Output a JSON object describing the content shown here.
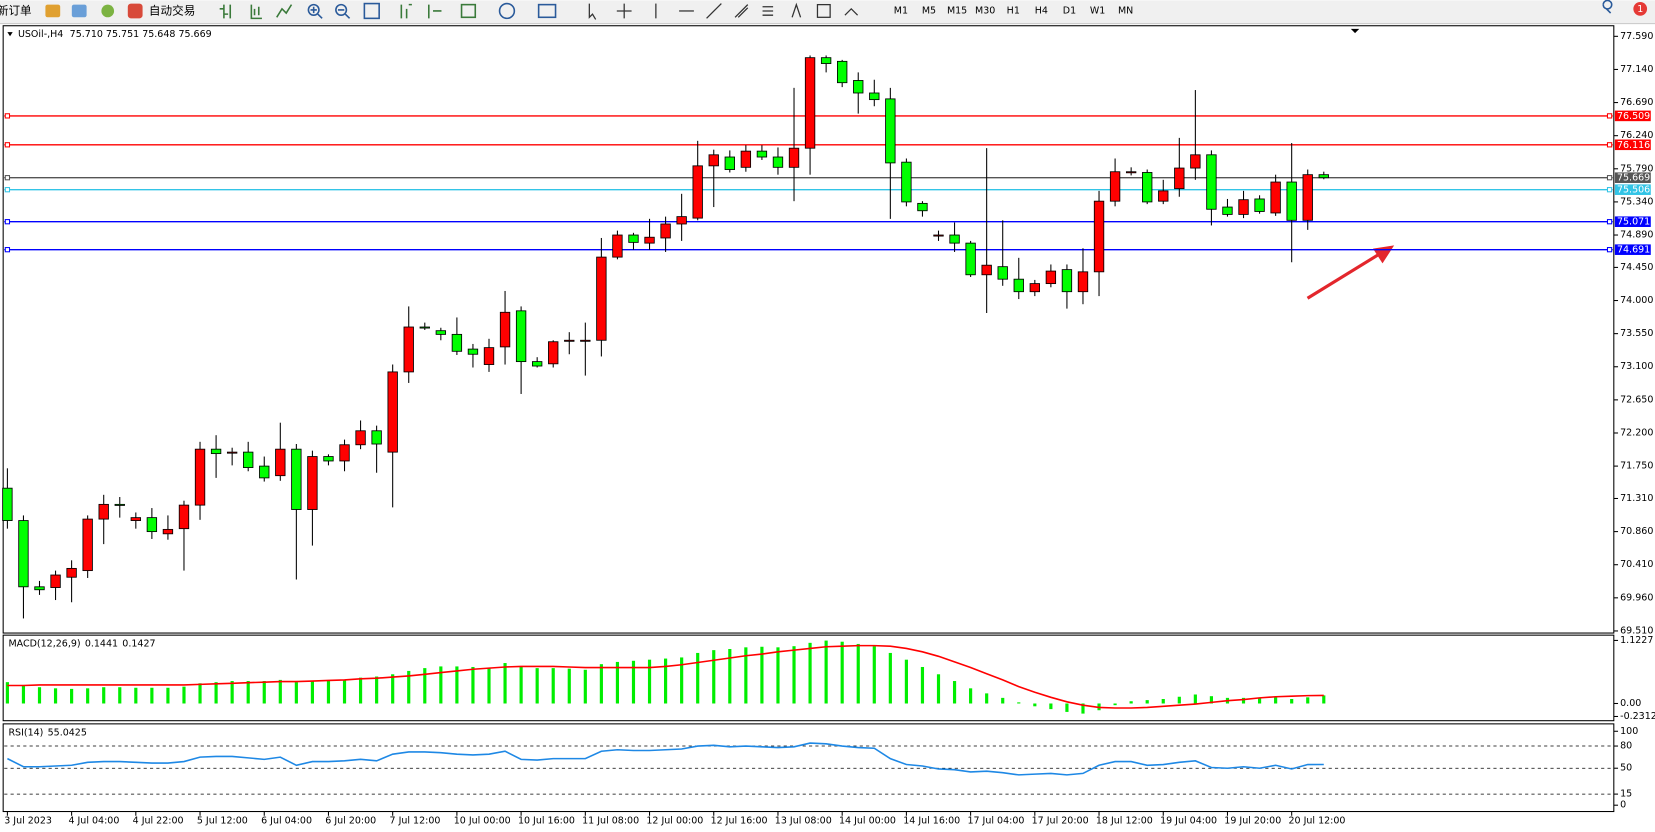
{
  "toolbar": {
    "new_order": "新订单",
    "auto_trading": "自动交易",
    "timeframes": [
      "M1",
      "M5",
      "M15",
      "M30",
      "H1",
      "H4",
      "D1",
      "W1",
      "MN"
    ],
    "alerts": 1
  },
  "chart_data": [
    {
      "type": "candlestick",
      "title": "USOil-,H4",
      "subtitle": "75.710 75.751 75.648 75.669",
      "categories": [
        "3 Jul 2023",
        null,
        null,
        null,
        "4 Jul 04:00",
        null,
        null,
        null,
        "4 Jul 22:00",
        null,
        null,
        null,
        "5 Jul 12:00",
        null,
        null,
        null,
        "6 Jul 04:00",
        null,
        null,
        null,
        "6 Jul 20:00",
        null,
        null,
        null,
        "7 Jul 12:00",
        null,
        null,
        null,
        "10 Jul 00:00",
        null,
        null,
        null,
        "10 Jul 16:00",
        null,
        null,
        null,
        "11 Jul 08:00",
        null,
        null,
        null,
        "12 Jul 00:00",
        null,
        null,
        null,
        "12 Jul 16:00",
        null,
        null,
        null,
        "13 Jul 08:00",
        null,
        null,
        null,
        "14 Jul 00:00",
        null,
        null,
        null,
        "14 Jul 16:00",
        null,
        null,
        null,
        "17 Jul 04:00",
        null,
        null,
        null,
        "17 Jul 20:00",
        null,
        null,
        null,
        "18 Jul 12:00",
        null,
        null,
        null,
        "19 Jul 04:00",
        null,
        null,
        null,
        "19 Jul 20:00",
        null,
        null,
        null,
        "20 Jul 12:00",
        null,
        null
      ],
      "open": [
        71.45,
        71.01,
        70.11,
        70.1,
        70.24,
        70.33,
        71.03,
        71.23,
        71.01,
        71.05,
        70.83,
        70.9,
        71.22,
        71.98,
        71.94,
        71.94,
        71.75,
        71.62,
        71.98,
        71.16,
        71.88,
        71.82,
        72.04,
        72.23,
        71.94,
        73.03,
        73.64,
        73.59,
        73.54,
        73.34,
        73.13,
        73.37,
        73.86,
        73.17,
        73.14,
        73.46,
        73.46,
        73.46,
        74.59,
        74.89,
        74.78,
        74.85,
        75.04,
        75.12,
        75.83,
        75.95,
        75.81,
        76.03,
        75.95,
        75.81,
        76.07,
        77.3,
        77.25,
        76.99,
        76.82,
        76.74,
        75.88,
        75.32,
        74.89,
        74.89,
        74.78,
        74.35,
        74.46,
        74.29,
        74.12,
        74.23,
        74.42,
        74.12,
        74.39,
        75.35,
        75.75,
        75.74,
        75.35,
        75.52,
        75.8,
        75.98,
        75.27,
        75.17,
        75.38,
        75.19,
        75.61,
        75.09,
        75.71
      ],
      "high": [
        71.72,
        71.08,
        70.19,
        70.33,
        70.47,
        71.08,
        71.36,
        71.33,
        71.12,
        71.18,
        71.08,
        71.28,
        72.08,
        72.17,
        72.0,
        72.08,
        71.88,
        72.34,
        72.05,
        71.96,
        71.91,
        72.11,
        72.37,
        72.3,
        73.13,
        73.92,
        73.7,
        73.63,
        73.77,
        73.41,
        73.48,
        74.13,
        73.92,
        73.23,
        73.46,
        73.57,
        73.7,
        74.85,
        74.95,
        74.92,
        75.11,
        75.14,
        75.45,
        76.17,
        76.05,
        76.04,
        76.11,
        76.11,
        76.08,
        76.89,
        77.33,
        77.33,
        77.27,
        77.1,
        77.0,
        76.89,
        75.93,
        75.35,
        74.95,
        75.06,
        74.81,
        76.07,
        75.09,
        74.58,
        74.28,
        74.49,
        74.49,
        74.71,
        75.49,
        75.93,
        75.81,
        75.78,
        75.64,
        76.21,
        76.86,
        76.04,
        75.38,
        75.49,
        75.43,
        75.71,
        76.14,
        75.78,
        75.751
      ],
      "low": [
        70.9,
        69.68,
        70.0,
        69.93,
        69.9,
        70.23,
        70.69,
        71.05,
        70.9,
        70.76,
        70.75,
        70.33,
        71.02,
        71.59,
        71.76,
        71.68,
        71.54,
        71.55,
        70.21,
        70.67,
        71.76,
        71.68,
        71.98,
        71.66,
        71.19,
        72.88,
        73.6,
        73.46,
        73.26,
        73.09,
        73.03,
        73.13,
        72.73,
        73.09,
        73.09,
        73.27,
        72.98,
        73.24,
        74.56,
        74.69,
        74.69,
        74.66,
        74.81,
        75.09,
        75.27,
        75.74,
        75.75,
        75.91,
        75.71,
        75.35,
        75.71,
        77.1,
        76.9,
        76.54,
        76.64,
        75.11,
        75.28,
        75.14,
        74.81,
        74.66,
        74.32,
        73.83,
        74.2,
        74.02,
        74.06,
        74.18,
        73.89,
        73.95,
        74.06,
        75.28,
        75.7,
        75.31,
        75.31,
        75.41,
        75.64,
        75.02,
        75.14,
        75.12,
        75.18,
        75.15,
        74.52,
        74.96,
        75.648
      ],
      "close": [
        71.01,
        70.11,
        70.07,
        70.27,
        70.36,
        71.03,
        71.23,
        71.22,
        71.05,
        70.86,
        70.89,
        71.22,
        71.98,
        71.92,
        71.94,
        71.73,
        71.59,
        71.98,
        71.16,
        71.88,
        71.82,
        72.04,
        72.23,
        72.05,
        73.03,
        73.64,
        73.63,
        73.54,
        73.31,
        73.27,
        73.36,
        73.84,
        73.17,
        73.11,
        73.44,
        73.46,
        73.46,
        74.59,
        74.89,
        74.79,
        74.86,
        75.04,
        75.14,
        75.83,
        75.98,
        75.78,
        76.03,
        75.95,
        75.81,
        76.07,
        77.3,
        77.22,
        76.96,
        76.82,
        76.73,
        75.87,
        75.34,
        75.22,
        74.89,
        74.78,
        74.35,
        74.48,
        74.29,
        74.12,
        74.23,
        74.4,
        74.12,
        74.39,
        75.35,
        75.75,
        75.75,
        75.34,
        75.49,
        75.8,
        75.98,
        75.24,
        75.17,
        75.37,
        75.21,
        75.61,
        75.09,
        75.71,
        75.669
      ],
      "up_color": "#ff0000",
      "down_color": "#00ff00",
      "wick_color": "#000000",
      "ylim": [
        69.496,
        77.705
      ],
      "yticks": [
        {
          "value": 77.59,
          "label": "77.590"
        },
        {
          "value": 77.14,
          "label": "77.140"
        },
        {
          "value": 76.69,
          "label": "76.690"
        },
        {
          "value": 76.24,
          "label": "76.240"
        },
        {
          "value": 75.79,
          "label": "75.790"
        },
        {
          "value": 75.34,
          "label": "75.340"
        },
        {
          "value": 74.89,
          "label": "74.890"
        },
        {
          "value": 74.45,
          "label": "74.450"
        },
        {
          "value": 74.0,
          "label": "74.000"
        },
        {
          "value": 73.55,
          "label": "73.550"
        },
        {
          "value": 73.1,
          "label": "73.100"
        },
        {
          "value": 72.65,
          "label": "72.650"
        },
        {
          "value": 72.2,
          "label": "72.200"
        },
        {
          "value": 71.75,
          "label": "71.750"
        },
        {
          "value": 71.31,
          "label": "71.310"
        },
        {
          "value": 70.86,
          "label": "70.860"
        },
        {
          "value": 70.41,
          "label": "70.410"
        },
        {
          "value": 69.96,
          "label": "69.960"
        },
        {
          "value": 69.51,
          "label": "69.510"
        }
      ],
      "levels": [
        {
          "value": 76.509,
          "color": "#ff0000"
        },
        {
          "value": 76.116,
          "color": "#ff0000"
        },
        {
          "value": 75.669,
          "color": "#555555"
        },
        {
          "value": 75.506,
          "color": "#33c4e6"
        },
        {
          "value": 75.071,
          "color": "#0000ff"
        },
        {
          "value": 74.691,
          "color": "#0000ff"
        }
      ]
    },
    {
      "type": "macd",
      "title": "MACD(12,26,9)",
      "series": [
        {
          "type": "bar",
          "color": "#00ee00",
          "values": [
            0.38,
            0.33,
            0.29,
            0.27,
            0.26,
            0.27,
            0.29,
            0.29,
            0.28,
            0.28,
            0.28,
            0.3,
            0.36,
            0.38,
            0.4,
            0.4,
            0.4,
            0.42,
            0.38,
            0.4,
            0.4,
            0.42,
            0.46,
            0.48,
            0.52,
            0.58,
            0.63,
            0.66,
            0.66,
            0.65,
            0.64,
            0.72,
            0.66,
            0.63,
            0.63,
            0.62,
            0.6,
            0.7,
            0.74,
            0.76,
            0.78,
            0.8,
            0.82,
            0.9,
            0.95,
            0.97,
            1.0,
            1.01,
            1.0,
            1.02,
            1.08,
            1.12,
            1.1,
            1.06,
            1.02,
            0.9,
            0.78,
            0.65,
            0.52,
            0.4,
            0.27,
            0.18,
            0.1,
            0.02,
            -0.05,
            -0.1,
            -0.15,
            -0.18,
            -0.12,
            -0.03,
            0.04,
            0.06,
            0.08,
            0.12,
            0.16,
            0.13,
            0.1,
            0.1,
            0.09,
            0.11,
            0.08,
            0.11,
            0.1441
          ]
        },
        {
          "type": "line",
          "color": "#ff0000",
          "values": [
            0.32,
            0.32,
            0.33,
            0.33,
            0.33,
            0.33,
            0.33,
            0.33,
            0.33,
            0.33,
            0.33,
            0.33,
            0.34,
            0.35,
            0.36,
            0.37,
            0.38,
            0.39,
            0.39,
            0.4,
            0.41,
            0.42,
            0.44,
            0.45,
            0.47,
            0.49,
            0.52,
            0.55,
            0.58,
            0.61,
            0.63,
            0.65,
            0.66,
            0.66,
            0.66,
            0.65,
            0.64,
            0.64,
            0.64,
            0.64,
            0.64,
            0.66,
            0.69,
            0.73,
            0.77,
            0.81,
            0.85,
            0.88,
            0.92,
            0.95,
            0.98,
            1.01,
            1.02,
            1.03,
            1.03,
            1.02,
            0.98,
            0.92,
            0.84,
            0.74,
            0.64,
            0.53,
            0.42,
            0.3,
            0.2,
            0.11,
            0.03,
            -0.03,
            -0.07,
            -0.08,
            -0.08,
            -0.07,
            -0.05,
            -0.03,
            -0.01,
            0.02,
            0.05,
            0.07,
            0.1,
            0.12,
            0.13,
            0.14,
            0.1427
          ]
        }
      ],
      "ylim": [
        -0.2312,
        1.1227
      ],
      "yticks": [
        1.1227,
        {
          "value": 0,
          "label": "0.00"
        },
        -0.2312
      ]
    },
    {
      "type": "line",
      "title": "RSI(14)",
      "color": "#1e88e5",
      "values": [
        63,
        52,
        52,
        53,
        54,
        58,
        59,
        59,
        58,
        57,
        57,
        59,
        65,
        66,
        66,
        64,
        62,
        65,
        54,
        59,
        59,
        60,
        62,
        60,
        69,
        72,
        72,
        71,
        69,
        68,
        69,
        73,
        62,
        61,
        63,
        63,
        63,
        73,
        75,
        74,
        74,
        75,
        76,
        80,
        81,
        79,
        80,
        79,
        78,
        79,
        84,
        83,
        80,
        78,
        77,
        63,
        55,
        53,
        49,
        48,
        45,
        46,
        44,
        41,
        42,
        43,
        41,
        43,
        54,
        59,
        59,
        54,
        55,
        58,
        60,
        51,
        50,
        52,
        50,
        54,
        49,
        55,
        55.0425
      ],
      "ylim": [
        0,
        100
      ],
      "yticks": [
        100,
        80,
        50,
        15,
        0
      ]
    }
  ]
}
